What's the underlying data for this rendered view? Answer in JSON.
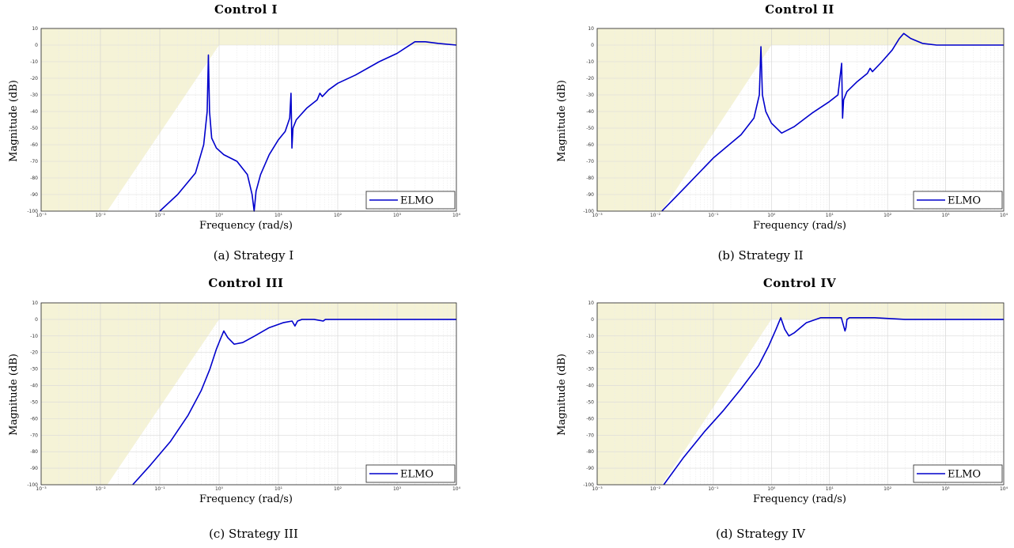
{
  "chart_data": [
    {
      "type": "line",
      "title": "Control I",
      "caption": "(a) Strategy I",
      "xlabel": "Frequency (rad/s)",
      "ylabel": "Magnitude (dB)",
      "xscale": "log",
      "xlim": [
        0.001,
        10000
      ],
      "ylim": [
        -100,
        10
      ],
      "xticks": [
        "10⁻³",
        "10⁻²",
        "10⁻¹",
        "10⁰",
        "10¹",
        "10²",
        "10³",
        "10⁴"
      ],
      "yticks": [
        "10",
        "0",
        "-10",
        "-20",
        "-30",
        "-40",
        "-50",
        "-60",
        "-70",
        "-80",
        "-90",
        "-100"
      ],
      "grid": true,
      "legend": {
        "position": "bottom-right",
        "entries": [
          "ELMO"
        ]
      },
      "bound_region": {
        "color": "#f5f3d7",
        "x": [
          0.001,
          0.013,
          1.0,
          10000
        ],
        "y": [
          -100,
          -100,
          0,
          0
        ]
      },
      "series": [
        {
          "name": "ELMO",
          "color": "#0000cc",
          "x": [
            0.1,
            0.2,
            0.4,
            0.55,
            0.63,
            0.66,
            0.69,
            0.75,
            0.9,
            1.2,
            2.0,
            3.0,
            3.6,
            3.9,
            4.2,
            5.0,
            7.0,
            10,
            13,
            15.5,
            16.3,
            16.9,
            17.6,
            20,
            30,
            45,
            50,
            55,
            70,
            100,
            200,
            500,
            1000,
            2000,
            3000,
            5000,
            10000
          ],
          "y": [
            -100,
            -90,
            -77,
            -60,
            -40,
            -6,
            -40,
            -56,
            -62,
            -66,
            -70,
            -78,
            -90,
            -100,
            -88,
            -78,
            -66,
            -57,
            -52,
            -44,
            -29,
            -62,
            -50,
            -45,
            -38,
            -33,
            -29,
            -31,
            -27,
            -23,
            -18,
            -10,
            -5,
            2,
            2,
            1,
            0
          ]
        }
      ]
    },
    {
      "type": "line",
      "title": "Control II",
      "caption": "(b) Strategy II",
      "xlabel": "Frequency (rad/s)",
      "ylabel": "Magnitude (dB)",
      "xscale": "log",
      "xlim": [
        0.001,
        10000
      ],
      "ylim": [
        -100,
        10
      ],
      "xticks": [
        "10⁻³",
        "10⁻²",
        "10⁻¹",
        "10⁰",
        "10¹",
        "10²",
        "10³",
        "10⁴"
      ],
      "yticks": [
        "10",
        "0",
        "-10",
        "-20",
        "-30",
        "-40",
        "-50",
        "-60",
        "-70",
        "-80",
        "-90",
        "-100"
      ],
      "grid": true,
      "legend": {
        "position": "bottom-right",
        "entries": [
          "ELMO"
        ]
      },
      "bound_region": {
        "color": "#f5f3d7",
        "x": [
          0.001,
          0.013,
          1.0,
          10000
        ],
        "y": [
          -100,
          -100,
          0,
          0
        ]
      },
      "series": [
        {
          "name": "ELMO",
          "color": "#0000cc",
          "x": [
            0.013,
            0.03,
            0.1,
            0.3,
            0.5,
            0.62,
            0.66,
            0.7,
            0.8,
            1.0,
            1.5,
            2.5,
            5,
            10,
            14,
            16.2,
            16.8,
            17.5,
            20,
            30,
            45,
            50,
            55,
            80,
            120,
            160,
            190,
            250,
            400,
            700,
            1000,
            10000
          ],
          "y": [
            -100,
            -87,
            -68,
            -54,
            -44,
            -30,
            -1,
            -30,
            -40,
            -47,
            -53,
            -49,
            -41,
            -34,
            -30,
            -11,
            -44,
            -33,
            -28,
            -22,
            -17,
            -14,
            -16,
            -10,
            -3,
            4,
            7,
            4,
            1,
            0,
            0,
            0
          ]
        }
      ]
    },
    {
      "type": "line",
      "title": "Control III",
      "caption": "(c) Strategy III",
      "xlabel": "Frequency (rad/s)",
      "ylabel": "Magnitude (dB)",
      "xscale": "log",
      "xlim": [
        0.001,
        10000
      ],
      "ylim": [
        -100,
        10
      ],
      "xticks": [
        "10⁻³",
        "10⁻²",
        "10⁻¹",
        "10⁰",
        "10¹",
        "10²",
        "10³",
        "10⁴"
      ],
      "yticks": [
        "10",
        "0",
        "-10",
        "-20",
        "-30",
        "-40",
        "-50",
        "-60",
        "-70",
        "-80",
        "-90",
        "-100"
      ],
      "grid": true,
      "legend": {
        "position": "bottom-right",
        "entries": [
          "ELMO"
        ]
      },
      "bound_region": {
        "color": "#f5f3d7",
        "x": [
          0.001,
          0.013,
          1.0,
          10000
        ],
        "y": [
          -100,
          -100,
          0,
          0
        ]
      },
      "series": [
        {
          "name": "ELMO",
          "color": "#0000cc",
          "x": [
            0.035,
            0.07,
            0.15,
            0.3,
            0.5,
            0.7,
            0.9,
            1.05,
            1.2,
            1.4,
            1.8,
            2.5,
            4,
            7,
            12,
            17,
            19,
            21,
            25,
            40,
            57,
            62,
            80,
            200,
            1000,
            10000
          ],
          "y": [
            -100,
            -88,
            -74,
            -58,
            -43,
            -30,
            -18,
            -12,
            -7,
            -11,
            -15,
            -14,
            -10,
            -5,
            -2,
            -1,
            -4,
            -1,
            0,
            0,
            -1,
            0,
            0,
            0,
            0,
            0
          ]
        }
      ]
    },
    {
      "type": "line",
      "title": "Control IV",
      "caption": "(d) Strategy IV",
      "xlabel": "Frequency (rad/s)",
      "ylabel": "Magnitude (dB)",
      "xscale": "log",
      "xlim": [
        0.001,
        10000
      ],
      "ylim": [
        -100,
        10
      ],
      "xticks": [
        "10⁻³",
        "10⁻²",
        "10⁻¹",
        "10⁰",
        "10¹",
        "10²",
        "10³",
        "10⁴"
      ],
      "yticks": [
        "10",
        "0",
        "-10",
        "-20",
        "-30",
        "-40",
        "-50",
        "-60",
        "-70",
        "-80",
        "-90",
        "-100"
      ],
      "grid": true,
      "legend": {
        "position": "bottom-right",
        "entries": [
          "ELMO"
        ]
      },
      "bound_region": {
        "color": "#f5f3d7",
        "x": [
          0.001,
          0.013,
          1.0,
          10000
        ],
        "y": [
          -100,
          -100,
          0,
          0
        ]
      },
      "series": [
        {
          "name": "ELMO",
          "color": "#0000cc",
          "x": [
            0.014,
            0.03,
            0.07,
            0.15,
            0.3,
            0.6,
            0.9,
            1.2,
            1.45,
            1.7,
            2.0,
            2.5,
            4,
            7,
            12,
            16,
            18.5,
            19.2,
            20,
            22,
            30,
            60,
            200,
            1000,
            10000
          ],
          "y": [
            -100,
            -84,
            -68,
            -55,
            -42,
            -28,
            -16,
            -6,
            1,
            -6,
            -10,
            -8,
            -2,
            1,
            1,
            1,
            -7,
            -5,
            0,
            1,
            1,
            1,
            0,
            0,
            0
          ]
        }
      ]
    }
  ]
}
